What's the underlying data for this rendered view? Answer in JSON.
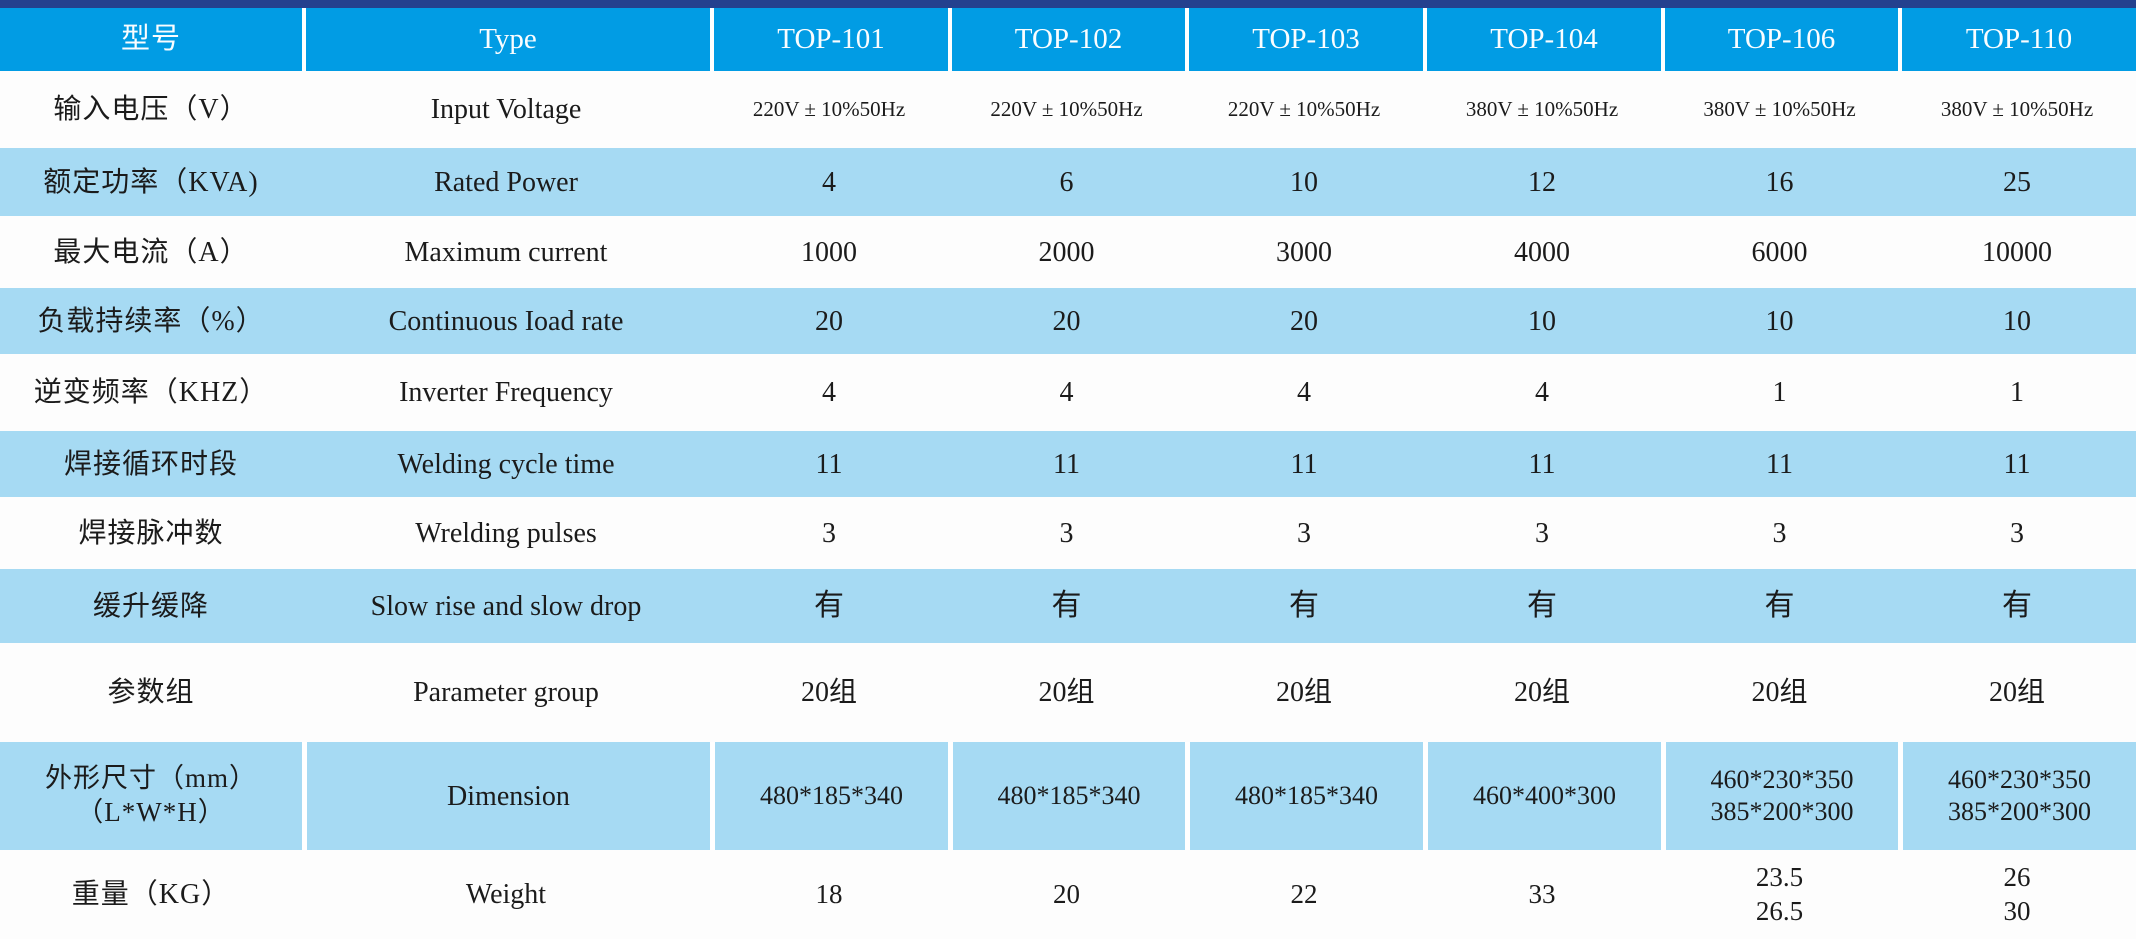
{
  "colors": {
    "top_border": "#24418e",
    "header_bg": "#019ce4",
    "header_text": "#fafdff",
    "row_bg": "#fdfdfd",
    "row_alt_bg": "#a6daf3",
    "text": "#1b1b1b"
  },
  "table": {
    "header": {
      "cn": "型号",
      "en": "Type",
      "models": [
        "TOP-101",
        "TOP-102",
        "TOP-103",
        "TOP-104",
        "TOP-106",
        "TOP-110"
      ]
    },
    "rows": [
      {
        "cn": "输入电压（V）",
        "en": "Input Voltage",
        "values": [
          "220V ± 10%50Hz",
          "220V ± 10%50Hz",
          "220V ± 10%50Hz",
          "380V ± 10%50Hz",
          "380V ± 10%50Hz",
          "380V ± 10%50Hz"
        ],
        "shade": false
      },
      {
        "cn": "额定功率（KVA)",
        "en": "Rated Power",
        "values": [
          "4",
          "6",
          "10",
          "12",
          "16",
          "25"
        ],
        "shade": true
      },
      {
        "cn": "最大电流（A）",
        "en": "Maximum current",
        "values": [
          "1000",
          "2000",
          "3000",
          "4000",
          "6000",
          "10000"
        ],
        "shade": false
      },
      {
        "cn": "负载持续率（%）",
        "en": "Continuous Ioad rate",
        "values": [
          "20",
          "20",
          "20",
          "10",
          "10",
          "10"
        ],
        "shade": true
      },
      {
        "cn": "逆变频率（KHZ）",
        "en": "Inverter Frequency",
        "values": [
          "4",
          "4",
          "4",
          "4",
          "1",
          "1"
        ],
        "shade": false
      },
      {
        "cn": "焊接循环时段",
        "en": "Welding cycle time",
        "values": [
          "11",
          "11",
          "11",
          "11",
          "11",
          "11"
        ],
        "shade": true
      },
      {
        "cn": "焊接脉冲数",
        "en": "Wrelding pulses",
        "values": [
          "3",
          "3",
          "3",
          "3",
          "3",
          "3"
        ],
        "shade": false
      },
      {
        "cn": "缓升缓降",
        "en": "Slow rise and slow drop",
        "values": [
          "有",
          "有",
          "有",
          "有",
          "有",
          "有"
        ],
        "shade": true
      },
      {
        "cn": "参数组",
        "en": "Parameter group",
        "values": [
          "20组",
          "20组",
          "20组",
          "20组",
          "20组",
          "20组"
        ],
        "shade": false
      },
      {
        "cn": "外形尺寸（mm）\n（L*W*H）",
        "en": "Dimension",
        "values": [
          "480*185*340",
          "480*185*340",
          "480*185*340",
          "460*400*300",
          "460*230*350\n385*200*300",
          "460*230*350\n385*200*300"
        ],
        "shade": true,
        "separators": true
      },
      {
        "cn": "重量（KG）",
        "en": "Weight",
        "values": [
          "18",
          "20",
          "22",
          "33",
          "23.5\n26.5",
          "26\n30"
        ],
        "shade": false
      }
    ]
  }
}
